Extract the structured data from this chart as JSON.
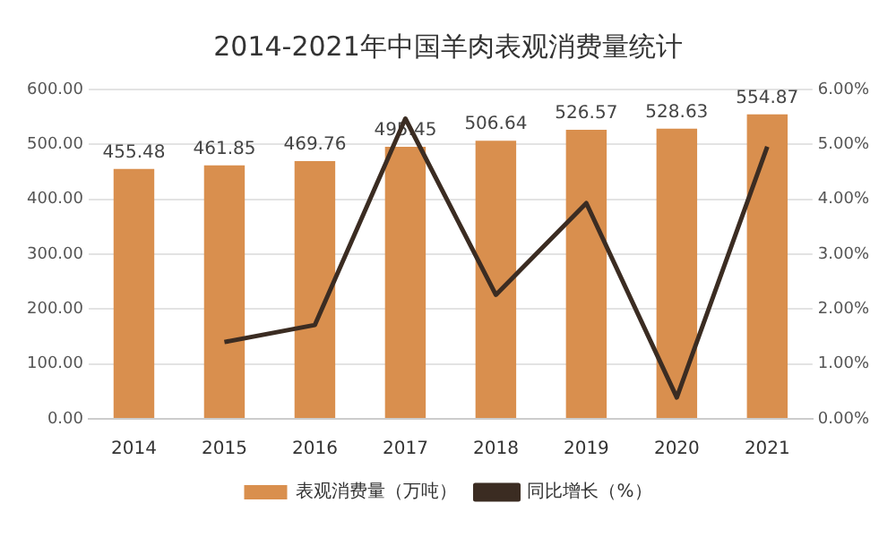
{
  "chart_data": {
    "type": "bar",
    "title": "2014-2021年中国羊肉表观消费量统计",
    "categories": [
      "2014",
      "2015",
      "2016",
      "2017",
      "2018",
      "2019",
      "2020",
      "2021"
    ],
    "series": [
      {
        "name": "表观消费量（万吨）",
        "color": "#d98f4e",
        "values": [
          455.48,
          461.85,
          469.76,
          495.45,
          506.64,
          526.57,
          528.63,
          554.87
        ],
        "value_labels": [
          "455.48",
          "461.85",
          "469.76",
          "495.45",
          "506.64",
          "526.57",
          "528.63",
          "554.87"
        ]
      },
      {
        "name": "同比增长（%）",
        "type": "line",
        "axis": "y2",
        "color": "#3b2c22",
        "values": [
          null,
          1.4,
          1.71,
          5.47,
          2.26,
          3.93,
          0.39,
          4.96
        ]
      }
    ],
    "ylim": [
      0,
      600
    ],
    "yticks": [
      {
        "value": 0,
        "label": "0.00"
      },
      {
        "value": 100,
        "label": "100.00"
      },
      {
        "value": 200,
        "label": "200.00"
      },
      {
        "value": 300,
        "label": "300.00"
      },
      {
        "value": 400,
        "label": "400.00"
      },
      {
        "value": 500,
        "label": "500.00"
      },
      {
        "value": 600,
        "label": "600.00"
      }
    ],
    "y2lim": [
      0,
      6
    ],
    "y2ticks": [
      {
        "value": 0,
        "label": "0.00%"
      },
      {
        "value": 1,
        "label": "1.00%"
      },
      {
        "value": 2,
        "label": "2.00%"
      },
      {
        "value": 3,
        "label": "3.00%"
      },
      {
        "value": 4,
        "label": "4.00%"
      },
      {
        "value": 5,
        "label": "5.00%"
      },
      {
        "value": 6,
        "label": "6.00%"
      }
    ],
    "grid": "y",
    "legend": "bottom",
    "marker": "none"
  }
}
